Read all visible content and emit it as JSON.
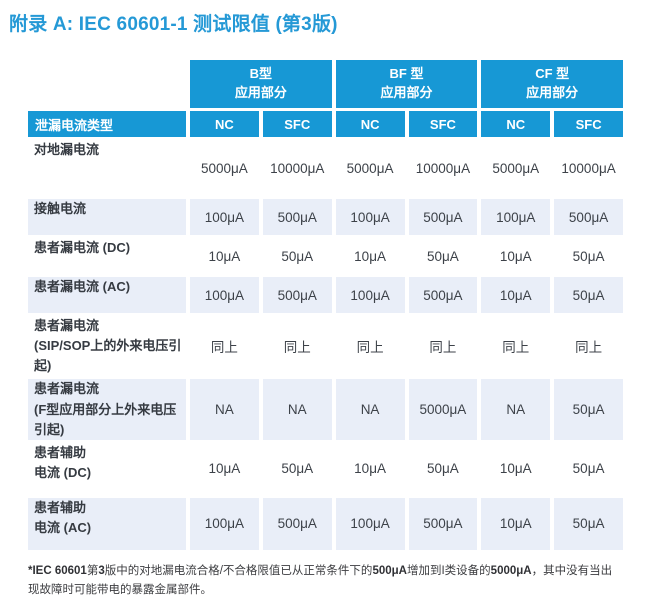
{
  "title": "附录 A: IEC 60601-1 测试限值 (第3版)",
  "colors": {
    "header_blue": "#1798d5",
    "title_blue": "#2599d6",
    "shaded_row": "#e9eef8",
    "body_text": "#3d4249"
  },
  "table": {
    "corner_label": "泄漏电流类型",
    "groups": [
      {
        "line1": "B型",
        "line2": "应用部分"
      },
      {
        "line1": "BF 型",
        "line2": "应用部分"
      },
      {
        "line1": "CF 型",
        "line2": "应用部分"
      }
    ],
    "subheaders": [
      "NC",
      "SFC",
      "NC",
      "SFC",
      "NC",
      "SFC"
    ],
    "rows": [
      {
        "label": [
          "对地漏电流"
        ],
        "values": [
          "5000μA",
          "10000μA",
          "5000μA",
          "10000μA",
          "5000μA",
          "10000μA"
        ],
        "shaded": false
      },
      {
        "label": [
          "接触电流"
        ],
        "values": [
          "100μA",
          "500μA",
          "100μA",
          "500μA",
          "100μA",
          "500μA"
        ],
        "shaded": true
      },
      {
        "label": [
          "患者漏电流 (DC)"
        ],
        "values": [
          "10μA",
          "50μA",
          "10μA",
          "50μA",
          "10μA",
          "50μA"
        ],
        "shaded": false
      },
      {
        "label": [
          "患者漏电流 (AC)"
        ],
        "values": [
          "100μA",
          "500μA",
          "100μA",
          "500μA",
          "10μA",
          "50μA"
        ],
        "shaded": true
      },
      {
        "label": [
          "患者漏电流",
          "(SIP/SOP上的外来电压引起)"
        ],
        "values": [
          "同上",
          "同上",
          "同上",
          "同上",
          "同上",
          "同上"
        ],
        "shaded": false
      },
      {
        "label": [
          "患者漏电流",
          "(F型应用部分上外来电压引起)"
        ],
        "values": [
          "NA",
          "NA",
          "NA",
          "5000μA",
          "NA",
          "50μA"
        ],
        "shaded": true
      },
      {
        "label": [
          "患者辅助",
          "电流 (DC)"
        ],
        "values": [
          "10μA",
          "50μA",
          "10μA",
          "50μA",
          "10μA",
          "50μA"
        ],
        "shaded": false
      },
      {
        "label": [
          "患者辅助",
          "电流 (AC)"
        ],
        "values": [
          "100μA",
          "500μA",
          "100μA",
          "500μA",
          "10μA",
          "50μA"
        ],
        "shaded": true
      }
    ]
  },
  "footnote": {
    "segments": [
      {
        "text": "*IEC 60601",
        "bold": true
      },
      {
        "text": "第",
        "bold": false
      },
      {
        "text": "3",
        "bold": true
      },
      {
        "text": "版中的对地漏电流合格/不合格限值已从正常条件下的",
        "bold": false
      },
      {
        "text": "500μA",
        "bold": true
      },
      {
        "text": "增加到I类设备的",
        "bold": false
      },
      {
        "text": "5000μA",
        "bold": true
      },
      {
        "text": "，其中没有当出现故障时可能带电的暴露金属部件。",
        "bold": false
      }
    ]
  }
}
